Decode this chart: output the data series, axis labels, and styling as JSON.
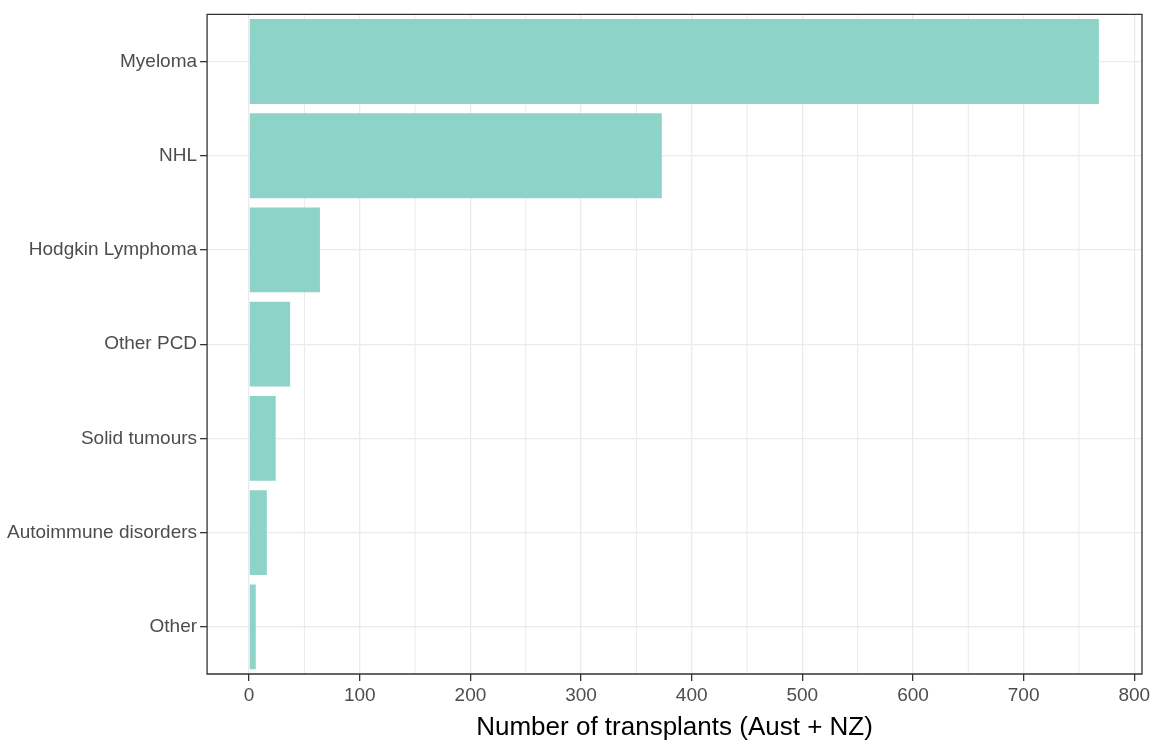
{
  "chart_data": {
    "type": "bar",
    "orientation": "horizontal",
    "xlabel": "Number of transplants (Aust + NZ)",
    "categories": [
      "Myeloma",
      "NHL",
      "Hodgkin Lymphoma",
      "Other PCD",
      "Solid tumours",
      "Autoimmune disorders",
      "Other"
    ],
    "values": [
      768,
      373,
      64,
      37,
      24,
      16,
      6
    ],
    "color": "#8dd3c7",
    "xlim": [
      -38,
      807
    ],
    "xticks": [
      0,
      100,
      200,
      300,
      400,
      500,
      600,
      700,
      800
    ],
    "grid": true,
    "legend": false
  }
}
